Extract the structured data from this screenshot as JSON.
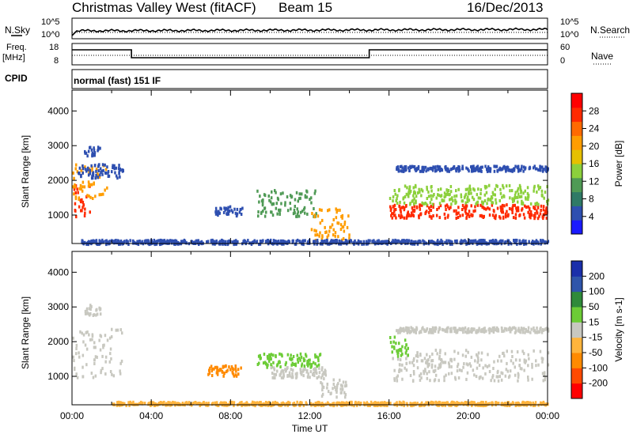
{
  "header": {
    "title": "Christmas Valley West (fitACF)",
    "beam": "Beam 15",
    "date": "16/Dec/2013"
  },
  "status_panels": {
    "nsky_label": "N.Sky",
    "nsky_ticks": [
      "10^5",
      "10^0"
    ],
    "nsearch_label": "N.Search",
    "nsearch_ticks": [
      "10^5",
      "10^0"
    ],
    "freq_label": "Freq.",
    "freq_unit": "[MHz]",
    "freq_ticks": [
      "18",
      "8"
    ],
    "nave_label": "Nave",
    "nave_ticks": [
      "60",
      "0"
    ],
    "cpid_label": "CPID",
    "cpid_text": "normal (fast) 151 IF"
  },
  "chart_data": [
    {
      "type": "heatmap",
      "name": "power",
      "ylabel": "Slant Range [km]",
      "xlabel": "",
      "ylim": [
        180,
        4600
      ],
      "xlim": [
        "00:00",
        "24:00"
      ],
      "yticks": [
        1000,
        2000,
        3000,
        4000
      ],
      "colorbar": {
        "label": "Power [dB]",
        "ticks": [
          4,
          8,
          12,
          16,
          20,
          24,
          28
        ],
        "colors": [
          "#1a1aff",
          "#2e4fb0",
          "#2f7a66",
          "#4f9a55",
          "#8cd03c",
          "#e6c000",
          "#ff9d00",
          "#ff6a00",
          "#ff2a00",
          "#ff0000"
        ]
      },
      "regions": [
        {
          "t0": 0.0,
          "t1": 0.9,
          "r0": 950,
          "r1": 1900,
          "color": "#ff2a00"
        },
        {
          "t0": 0.0,
          "t1": 1.8,
          "r0": 1500,
          "r1": 2500,
          "color": "#ff9d00"
        },
        {
          "t0": 0.2,
          "t1": 2.6,
          "r0": 2100,
          "r1": 2500,
          "color": "#2e4fb0"
        },
        {
          "t0": 0.6,
          "t1": 1.4,
          "r0": 2750,
          "r1": 3000,
          "color": "#2e4fb0"
        },
        {
          "t0": 7.2,
          "t1": 8.6,
          "r0": 1000,
          "r1": 1300,
          "color": "#2e4fb0"
        },
        {
          "t0": 9.3,
          "t1": 12.3,
          "r0": 1000,
          "r1": 1750,
          "color": "#4f9a55"
        },
        {
          "t0": 12.0,
          "t1": 14.0,
          "r0": 300,
          "r1": 1250,
          "color": "#ff9d00"
        },
        {
          "t0": 16.0,
          "t1": 24.0,
          "r0": 950,
          "r1": 1350,
          "color": "#ff2a00"
        },
        {
          "t0": 16.0,
          "t1": 24.0,
          "r0": 1350,
          "r1": 1900,
          "color": "#8cd03c"
        },
        {
          "t0": 16.3,
          "t1": 24.0,
          "r0": 2300,
          "r1": 2450,
          "color": "#2e4fb0"
        },
        {
          "t0": 0.3,
          "t1": 24.0,
          "r0": 200,
          "r1": 320,
          "color": "#2e4fb0"
        }
      ]
    },
    {
      "type": "heatmap",
      "name": "velocity",
      "ylabel": "Slant Range [km]",
      "xlabel": "Time UT",
      "ylim": [
        180,
        4600
      ],
      "xlim": [
        "00:00",
        "24:00"
      ],
      "yticks": [
        1000,
        2000,
        3000,
        4000
      ],
      "xticks": [
        "00:00",
        "04:00",
        "08:00",
        "12:00",
        "16:00",
        "20:00",
        "00:00"
      ],
      "colorbar": {
        "label": "Velocity [m s-1]",
        "ticks": [
          "200",
          "100",
          "50",
          "15",
          "-15",
          "-50",
          "-100",
          "-200"
        ],
        "colors": [
          "#1a2faa",
          "#2f55aa",
          "#2f8a3a",
          "#6ccc36",
          "#c8c8c0",
          "#ffb43c",
          "#ff8a00",
          "#ff4a00",
          "#ff0000"
        ]
      },
      "regions": [
        {
          "t0": 0.0,
          "t1": 2.5,
          "r0": 1000,
          "r1": 2400,
          "color": "#c8c8c0"
        },
        {
          "t0": 0.6,
          "t1": 1.4,
          "r0": 2800,
          "r1": 3100,
          "color": "#c8c8c0"
        },
        {
          "t0": 6.8,
          "t1": 8.5,
          "r0": 1050,
          "r1": 1350,
          "color": "#ff8a00"
        },
        {
          "t0": 9.3,
          "t1": 12.5,
          "r0": 1300,
          "r1": 1700,
          "color": "#6ccc36"
        },
        {
          "t0": 10.0,
          "t1": 12.8,
          "r0": 1000,
          "r1": 1300,
          "color": "#c8c8c0"
        },
        {
          "t0": 12.5,
          "t1": 13.8,
          "r0": 400,
          "r1": 1000,
          "color": "#c8c8c0"
        },
        {
          "t0": 16.0,
          "t1": 24.0,
          "r0": 900,
          "r1": 1800,
          "color": "#c8c8c0"
        },
        {
          "t0": 16.0,
          "t1": 17.0,
          "r0": 1600,
          "r1": 2200,
          "color": "#6ccc36"
        },
        {
          "t0": 16.3,
          "t1": 24.0,
          "r0": 2300,
          "r1": 2450,
          "color": "#c8c8c0"
        },
        {
          "t0": 2.0,
          "t1": 24.0,
          "r0": 200,
          "r1": 300,
          "color": "#ffb43c"
        }
      ]
    }
  ]
}
